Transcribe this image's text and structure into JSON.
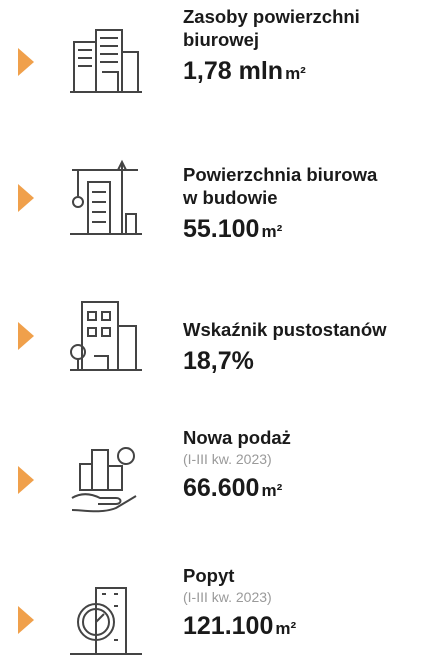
{
  "items": [
    {
      "title": [
        "Zasoby powierzchni",
        "biurowej"
      ],
      "value": "1,78 mln",
      "unit": "m²"
    },
    {
      "title": [
        "Powierzchnia biurowa",
        "w budowie"
      ],
      "value": "55.100",
      "unit": "m²"
    },
    {
      "title": [
        "Wskaźnik pustostanów"
      ],
      "value": "18,7%"
    },
    {
      "title": [
        "Nowa podaż"
      ],
      "subtitle": "(I-III kw. 2023)",
      "value": "66.600",
      "unit": "m²"
    },
    {
      "title": [
        "Popyt"
      ],
      "subtitle": "(I-III kw. 2023)",
      "value": "121.100",
      "unit": "m²"
    }
  ]
}
